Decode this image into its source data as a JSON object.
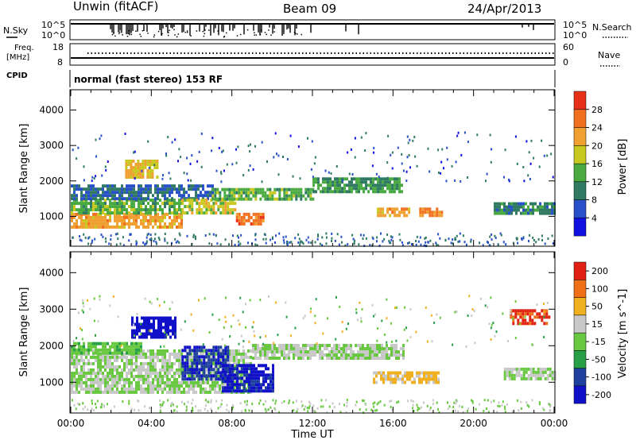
{
  "header": {
    "station": "Unwin (fitACF)",
    "beam": "Beam 09",
    "date": "24/Apr/2013"
  },
  "noise_panel": {
    "left_label": "N.Sky",
    "right_label": "N.Search",
    "scale_top": "10^5",
    "scale_bottom": "10^0",
    "right_scale_top": "10^5",
    "right_scale_bottom": "10^0"
  },
  "freq_panel": {
    "left_label_1": "Freq.",
    "left_label_2": "[MHz]",
    "cpid_label": "CPID",
    "left_ticks": [
      "18",
      "8"
    ],
    "right_label": "Nave",
    "right_ticks": [
      "60",
      "0"
    ]
  },
  "cpid_text": "normal (fast stereo) 153 RF",
  "x_axis": {
    "label": "Time UT",
    "ticks": [
      "00:00",
      "04:00",
      "08:00",
      "12:00",
      "16:00",
      "20:00",
      "00:00"
    ]
  },
  "chart_data": [
    {
      "type": "heatmap",
      "name": "power",
      "ylabel": "Slant Range [km]",
      "y_ticks": [
        "1000",
        "2000",
        "3000",
        "4000"
      ],
      "ylim": [
        180,
        4550
      ],
      "xlim": [
        0,
        24
      ],
      "colorbar": {
        "label": "Power [dB]",
        "ticks": [
          "4",
          "8",
          "12",
          "16",
          "20",
          "24",
          "28"
        ],
        "range": [
          0,
          32
        ],
        "colors": [
          "#1010e0",
          "#2850c8",
          "#307a64",
          "#48aa40",
          "#c8c820",
          "#f0a030",
          "#f07020",
          "#e83018"
        ]
      },
      "echo_regions": [
        {
          "t0": 0.0,
          "t1": 5.5,
          "r0": 700,
          "r1": 1100,
          "power_db": 22
        },
        {
          "t0": 0.0,
          "t1": 5.5,
          "r0": 1100,
          "r1": 1500,
          "power_db": 14
        },
        {
          "t0": 0.0,
          "t1": 7.0,
          "r0": 1500,
          "r1": 1900,
          "power_db": 8
        },
        {
          "t0": 2.7,
          "t1": 4.3,
          "r0": 2150,
          "r1": 2600,
          "power_db": 20
        },
        {
          "t0": 5.5,
          "t1": 8.2,
          "r0": 1100,
          "r1": 1500,
          "power_db": 18
        },
        {
          "t0": 7.0,
          "t1": 12.0,
          "r0": 1500,
          "r1": 1800,
          "power_db": 14
        },
        {
          "t0": 8.2,
          "t1": 9.6,
          "r0": 800,
          "r1": 1100,
          "power_db": 26
        },
        {
          "t0": 12.0,
          "t1": 16.5,
          "r0": 1700,
          "r1": 2100,
          "power_db": 12
        },
        {
          "t0": 15.2,
          "t1": 16.8,
          "r0": 1000,
          "r1": 1250,
          "power_db": 22
        },
        {
          "t0": 17.3,
          "t1": 18.4,
          "r0": 1000,
          "r1": 1250,
          "power_db": 24
        },
        {
          "t0": 21.0,
          "t1": 24.0,
          "r0": 1050,
          "r1": 1400,
          "power_db": 10
        }
      ]
    },
    {
      "type": "heatmap",
      "name": "velocity",
      "ylabel": "Slant Range [km]",
      "y_ticks": [
        "1000",
        "2000",
        "3000",
        "4000"
      ],
      "ylim": [
        180,
        4550
      ],
      "xlim": [
        0,
        24
      ],
      "colorbar": {
        "label": "Velocity [m s^-1]",
        "ticks": [
          "200",
          "100",
          "50",
          "15",
          "-15",
          "-50",
          "-100",
          "-200"
        ],
        "range": [
          -250,
          250
        ],
        "colors": [
          "#1010c8",
          "#2040a0",
          "#28a048",
          "#68c840",
          "#c8c8c8",
          "#f0b020",
          "#f07018",
          "#e02010"
        ]
      },
      "echo_regions": [
        {
          "t0": 0.0,
          "t1": 9.0,
          "r0": 700,
          "r1": 1900,
          "velocity": 0
        },
        {
          "t0": 0.0,
          "t1": 3.5,
          "r0": 1800,
          "r1": 2100,
          "velocity": -40
        },
        {
          "t0": 3.0,
          "t1": 5.2,
          "r0": 2200,
          "r1": 2800,
          "velocity": -220
        },
        {
          "t0": 5.5,
          "t1": 7.8,
          "r0": 1100,
          "r1": 2000,
          "velocity": -180
        },
        {
          "t0": 7.5,
          "t1": 10.0,
          "r0": 800,
          "r1": 1500,
          "velocity": -200
        },
        {
          "t0": 9.0,
          "t1": 16.5,
          "r0": 1700,
          "r1": 2050,
          "velocity": 0
        },
        {
          "t0": 15.0,
          "t1": 18.3,
          "r0": 1000,
          "r1": 1300,
          "velocity": 80
        },
        {
          "t0": 21.5,
          "t1": 24.0,
          "r0": 1100,
          "r1": 1400,
          "velocity": 0
        },
        {
          "t0": 21.8,
          "t1": 23.8,
          "r0": 2600,
          "r1": 3000,
          "velocity": 200
        }
      ]
    }
  ]
}
